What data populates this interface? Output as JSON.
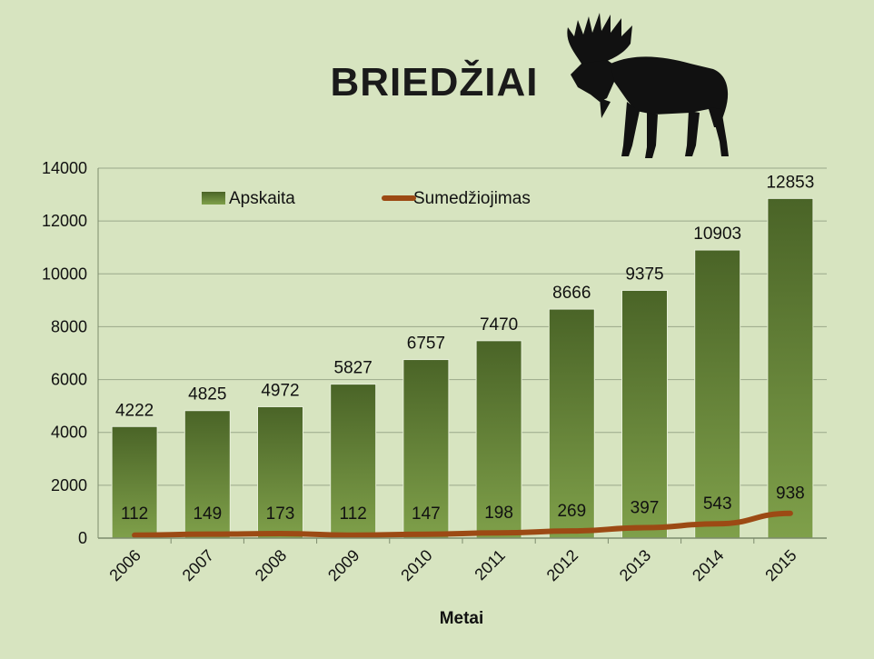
{
  "chart_data": {
    "type": "bar",
    "title": "BRIEDŽIAI",
    "xlabel": "Metai",
    "ylabel": "",
    "categories": [
      "2006",
      "2007",
      "2008",
      "2009",
      "2010",
      "2011",
      "2012",
      "2013",
      "2014",
      "2015"
    ],
    "ylim": [
      0,
      14000
    ],
    "yticks": [
      "0",
      "2000",
      "4000",
      "6000",
      "8000",
      "10000",
      "12000",
      "14000"
    ],
    "grid": true,
    "legend_position": "top-left",
    "series": [
      {
        "name": "Apskaita",
        "kind": "bar",
        "color": "#4e6a2a",
        "values": [
          4222,
          4825,
          4972,
          5827,
          6757,
          7470,
          8666,
          9375,
          10903,
          12853
        ]
      },
      {
        "name": "Sumedžiojimas",
        "kind": "line",
        "color": "#9c4a14",
        "values": [
          112,
          149,
          173,
          112,
          147,
          198,
          269,
          397,
          543,
          938
        ]
      }
    ]
  },
  "colors": {
    "background": "#d7e4c0",
    "bar_top": "#4a6427",
    "bar_bottom": "#7fa04a",
    "line": "#9c4a14",
    "grid": "#9aa88a"
  },
  "decoration": {
    "icon": "moose-silhouette-icon"
  }
}
